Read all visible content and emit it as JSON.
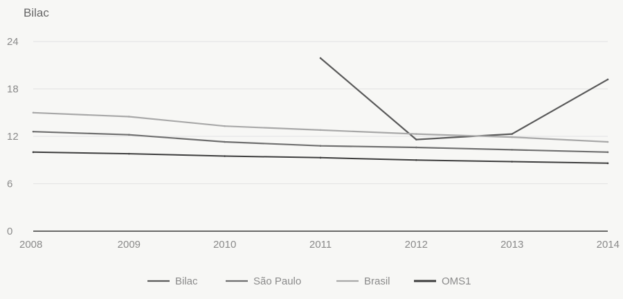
{
  "chart_data": {
    "type": "line",
    "title": "Bilac",
    "xlabel": "",
    "ylabel": "",
    "x": [
      "2008",
      "2009",
      "2010",
      "2011",
      "2012",
      "2013",
      "2014"
    ],
    "ylim": [
      0,
      24
    ],
    "yticks": [
      "0",
      "6",
      "12",
      "18",
      "24"
    ],
    "grid": true,
    "legend_position": "bottom",
    "series": [
      {
        "name": "Bilac",
        "color": "#5a5a5a",
        "values": [
          null,
          null,
          null,
          21.9,
          11.6,
          12.3,
          19.2
        ]
      },
      {
        "name": "São Paulo",
        "color": "#6e6e6e",
        "values": [
          12.6,
          12.2,
          11.3,
          10.8,
          10.6,
          10.3,
          10.0
        ]
      },
      {
        "name": "Brasil",
        "color": "#a8a8a8",
        "values": [
          15.0,
          14.5,
          13.3,
          12.8,
          12.3,
          11.9,
          11.3
        ]
      },
      {
        "name": "OMS1",
        "color": "#3c3c3c",
        "values": [
          10.0,
          9.8,
          9.5,
          9.3,
          9.0,
          8.8,
          8.6
        ]
      }
    ]
  }
}
